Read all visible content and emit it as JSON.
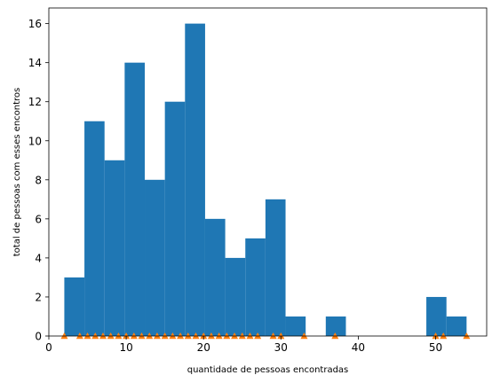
{
  "chart_data": {
    "type": "bar",
    "title": "",
    "xlabel": "quantidade de pessoas encontradas",
    "ylabel": "total de pessoas com esses encontros",
    "xlim": [
      0,
      56.6
    ],
    "ylim": [
      0,
      16.8
    ],
    "xticks": [
      0,
      10,
      20,
      30,
      40,
      50
    ],
    "yticks": [
      0,
      2,
      4,
      6,
      8,
      10,
      12,
      14,
      16
    ],
    "grid": false,
    "colors": {
      "bars": "#1f77b4",
      "markers": "#ff7f0e"
    },
    "bins": [
      {
        "x0": 2.0,
        "x1": 4.6,
        "count": 3
      },
      {
        "x0": 4.6,
        "x1": 7.2,
        "count": 11
      },
      {
        "x0": 7.2,
        "x1": 9.8,
        "count": 9
      },
      {
        "x0": 9.8,
        "x1": 12.4,
        "count": 14
      },
      {
        "x0": 12.4,
        "x1": 15.0,
        "count": 8
      },
      {
        "x0": 15.0,
        "x1": 17.6,
        "count": 12
      },
      {
        "x0": 17.6,
        "x1": 20.2,
        "count": 16
      },
      {
        "x0": 20.2,
        "x1": 22.8,
        "count": 6
      },
      {
        "x0": 22.8,
        "x1": 25.4,
        "count": 4
      },
      {
        "x0": 25.4,
        "x1": 28.0,
        "count": 5
      },
      {
        "x0": 28.0,
        "x1": 30.6,
        "count": 7
      },
      {
        "x0": 30.6,
        "x1": 33.2,
        "count": 1
      },
      {
        "x0": 33.2,
        "x1": 35.8,
        "count": 0
      },
      {
        "x0": 35.8,
        "x1": 38.4,
        "count": 1
      },
      {
        "x0": 38.4,
        "x1": 41.0,
        "count": 0
      },
      {
        "x0": 41.0,
        "x1": 43.6,
        "count": 0
      },
      {
        "x0": 43.6,
        "x1": 46.2,
        "count": 0
      },
      {
        "x0": 46.2,
        "x1": 48.8,
        "count": 0
      },
      {
        "x0": 48.8,
        "x1": 51.4,
        "count": 2
      },
      {
        "x0": 51.4,
        "x1": 54.0,
        "count": 1
      }
    ],
    "markers": {
      "shape": "triangle-up",
      "y": 0,
      "x": [
        2,
        4,
        5,
        6,
        7,
        8,
        9,
        10,
        11,
        12,
        13,
        14,
        15,
        16,
        17,
        18,
        19,
        20,
        21,
        22,
        23,
        24,
        25,
        26,
        27,
        29,
        30,
        33,
        37,
        50,
        51,
        54
      ]
    }
  }
}
